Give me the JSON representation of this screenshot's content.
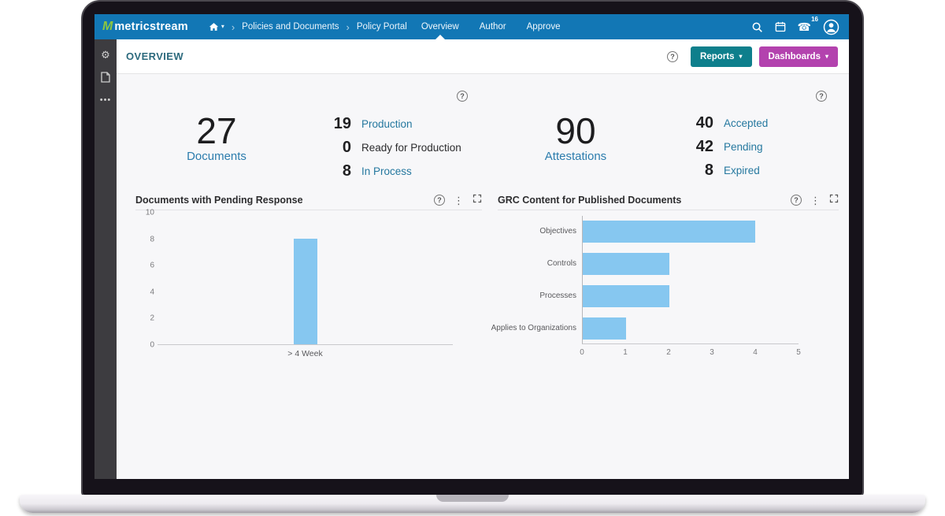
{
  "topnav": {
    "logo_m": "M",
    "logo_text": "metricstream",
    "breadcrumb": [
      "Policies and Documents",
      "Policy Portal"
    ],
    "tabs": [
      {
        "label": "Overview"
      },
      {
        "label": "Author"
      },
      {
        "label": "Approve"
      }
    ],
    "notification_count": "16"
  },
  "header": {
    "title": "OVERVIEW",
    "reports_button": "Reports",
    "dashboards_button": "Dashboards"
  },
  "stats": {
    "documents": {
      "value": "27",
      "label": "Documents",
      "items": [
        {
          "value": "19",
          "label": "Production"
        },
        {
          "value": "0",
          "label": "Ready for Production"
        },
        {
          "value": "8",
          "label": "In Process"
        }
      ]
    },
    "attestations": {
      "value": "90",
      "label": "Attestations",
      "items": [
        {
          "value": "40",
          "label": "Accepted"
        },
        {
          "value": "42",
          "label": "Pending"
        },
        {
          "value": "8",
          "label": "Expired"
        }
      ]
    }
  },
  "chart_data": [
    {
      "type": "bar",
      "orientation": "vertical",
      "title": "Documents with Pending Response",
      "categories": [
        "> 4 Week"
      ],
      "values": [
        8
      ],
      "ylim": [
        0,
        10
      ],
      "yticks": [
        0,
        2,
        4,
        6,
        8,
        10
      ],
      "bar_color": "#86c7f0",
      "grid": false,
      "legend": false
    },
    {
      "type": "bar",
      "orientation": "horizontal",
      "title": "GRC Content for Published Documents",
      "categories": [
        "Objectives",
        "Controls",
        "Processes",
        "Applies to Organizations"
      ],
      "values": [
        4,
        2,
        2,
        1
      ],
      "xlim": [
        0,
        5
      ],
      "xticks": [
        0,
        1,
        2,
        3,
        4,
        5
      ],
      "bar_color": "#86c7f0",
      "grid": false,
      "legend": false
    }
  ],
  "colors": {
    "navbar_blue": "#1277b5",
    "logo_green": "#8dc63f",
    "reports_teal": "#0e7f8c",
    "dashboards_purple": "#b342ae",
    "link_blue": "#25789f",
    "bar_blue": "#86c7f0",
    "sidebar_dark": "#3d3c40"
  }
}
